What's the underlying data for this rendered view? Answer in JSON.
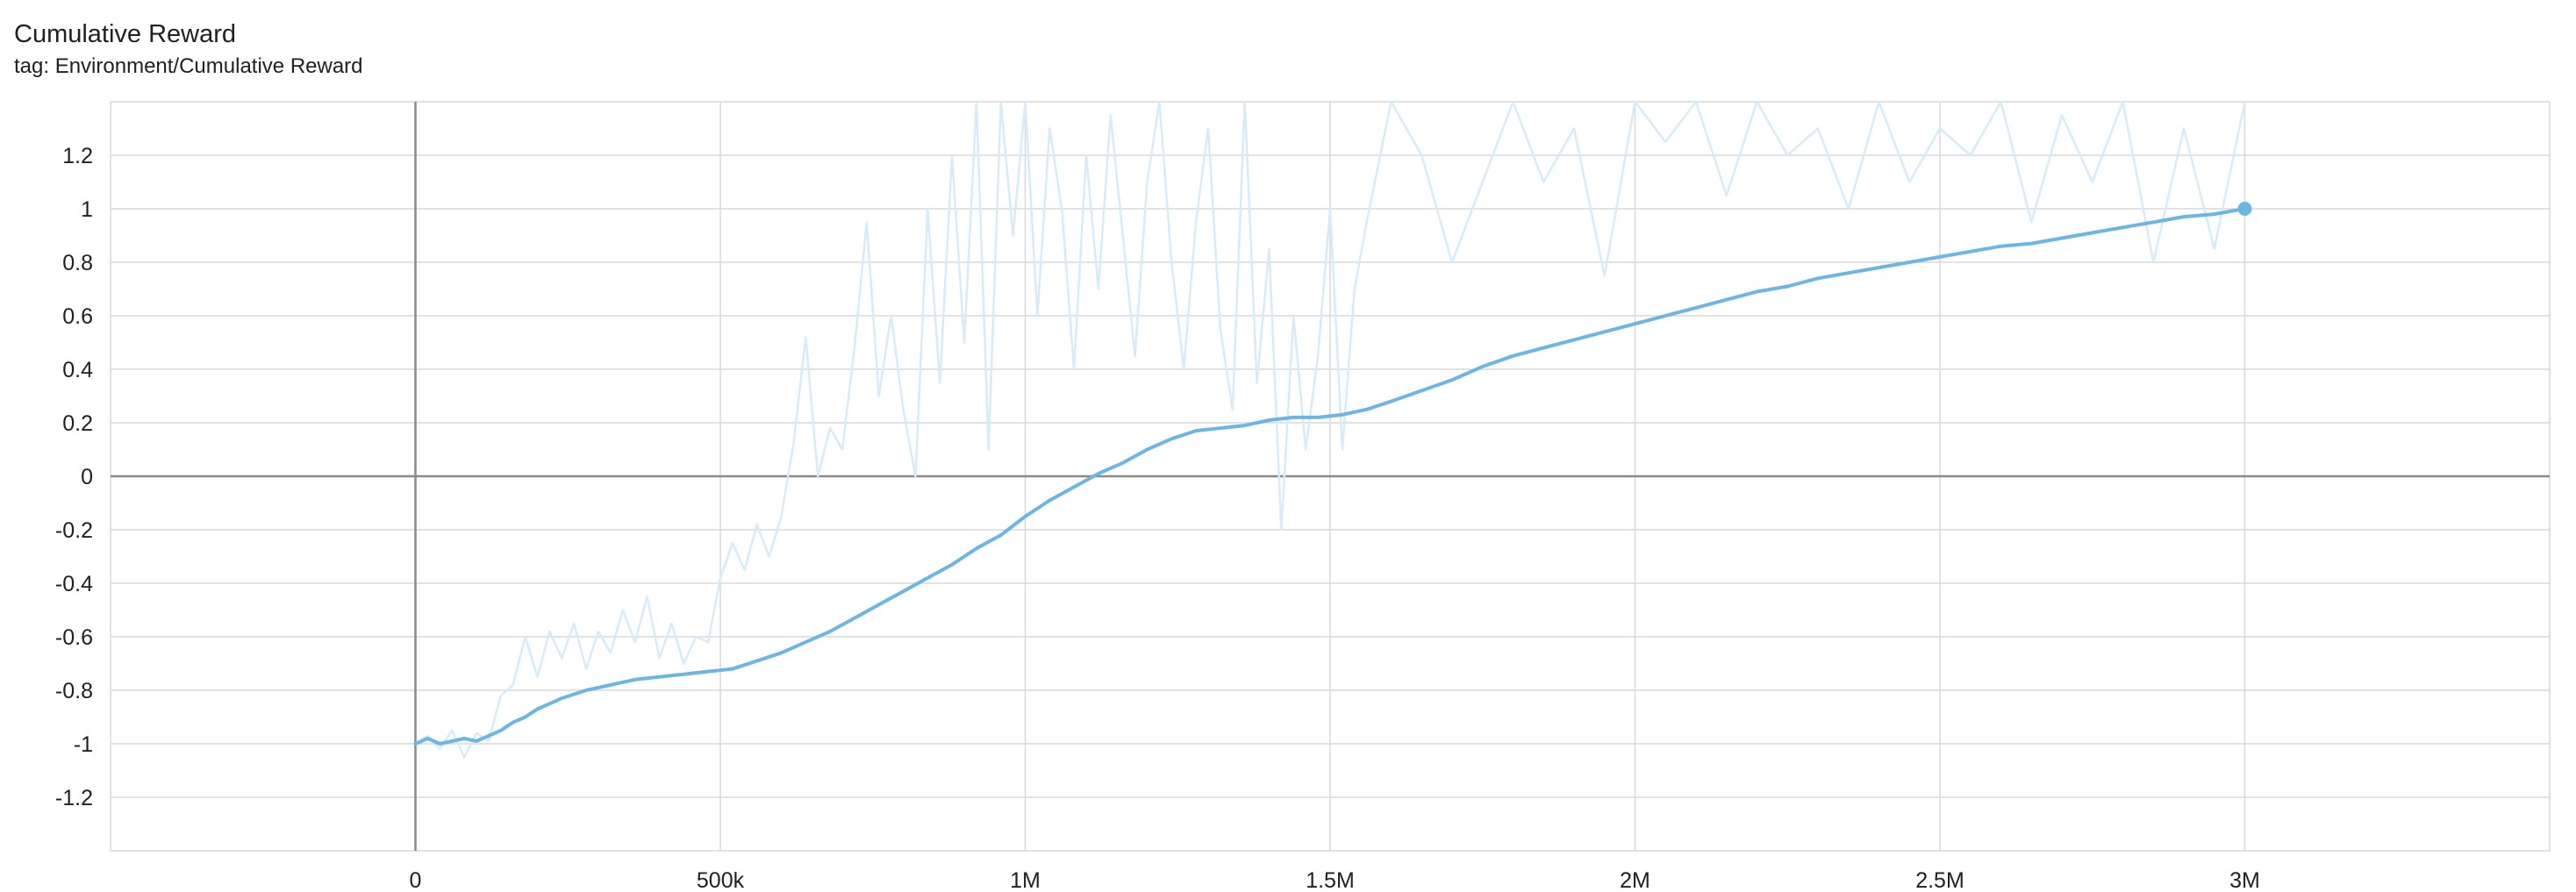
{
  "header": {
    "title": "Cumulative Reward",
    "tag": "tag: Environment/Cumulative Reward"
  },
  "colors": {
    "smoothed": "#6cb6e6",
    "raw": "#d8ebf8",
    "grid": "#d9d9d9",
    "zero_axis": "#8a8a8a"
  },
  "chart_data": {
    "type": "line",
    "title": "Cumulative Reward",
    "subtitle": "tag: Environment/Cumulative Reward",
    "xlim": [
      -500000,
      3500000
    ],
    "ylim": [
      -1.4,
      1.4
    ],
    "grid": true,
    "x_ticks": [
      0,
      500000,
      1000000,
      1500000,
      2000000,
      2500000,
      3000000
    ],
    "x_tick_labels": [
      "0",
      "500k",
      "1M",
      "1.5M",
      "2M",
      "2.5M",
      "3M"
    ],
    "y_ticks": [
      1.2,
      1,
      0.8,
      0.6,
      0.4,
      0.2,
      0,
      -0.2,
      -0.4,
      -0.6,
      -0.8,
      -1,
      -1.2
    ],
    "y_tick_labels": [
      "1.2",
      "1",
      "0.8",
      "0.6",
      "0.4",
      "0.2",
      "0",
      "-0.2",
      "-0.4",
      "-0.6",
      "-0.8",
      "-1",
      "-1.2"
    ],
    "series": [
      {
        "role": "smoothed",
        "x": [
          0,
          20000,
          40000,
          60000,
          80000,
          100000,
          120000,
          140000,
          160000,
          180000,
          200000,
          240000,
          280000,
          320000,
          360000,
          400000,
          440000,
          480000,
          520000,
          560000,
          600000,
          640000,
          680000,
          720000,
          760000,
          800000,
          840000,
          880000,
          920000,
          960000,
          1000000,
          1040000,
          1080000,
          1120000,
          1160000,
          1200000,
          1240000,
          1280000,
          1320000,
          1360000,
          1400000,
          1440000,
          1480000,
          1520000,
          1560000,
          1600000,
          1650000,
          1700000,
          1750000,
          1800000,
          1850000,
          1900000,
          1950000,
          2000000,
          2050000,
          2100000,
          2150000,
          2200000,
          2250000,
          2300000,
          2350000,
          2400000,
          2450000,
          2500000,
          2550000,
          2600000,
          2650000,
          2700000,
          2750000,
          2800000,
          2850000,
          2900000,
          2950000,
          3000000
        ],
        "y": [
          -1.0,
          -0.98,
          -1.0,
          -0.99,
          -0.98,
          -0.99,
          -0.97,
          -0.95,
          -0.92,
          -0.9,
          -0.87,
          -0.83,
          -0.8,
          -0.78,
          -0.76,
          -0.75,
          -0.74,
          -0.73,
          -0.72,
          -0.69,
          -0.66,
          -0.62,
          -0.58,
          -0.53,
          -0.48,
          -0.43,
          -0.38,
          -0.33,
          -0.27,
          -0.22,
          -0.15,
          -0.09,
          -0.04,
          0.01,
          0.05,
          0.1,
          0.14,
          0.17,
          0.18,
          0.19,
          0.21,
          0.22,
          0.22,
          0.23,
          0.25,
          0.28,
          0.32,
          0.36,
          0.41,
          0.45,
          0.48,
          0.51,
          0.54,
          0.57,
          0.6,
          0.63,
          0.66,
          0.69,
          0.71,
          0.74,
          0.76,
          0.78,
          0.8,
          0.82,
          0.84,
          0.86,
          0.87,
          0.89,
          0.91,
          0.93,
          0.95,
          0.97,
          0.98,
          1.0
        ]
      },
      {
        "role": "raw",
        "x": [
          0,
          20000,
          40000,
          60000,
          80000,
          100000,
          120000,
          140000,
          160000,
          180000,
          200000,
          220000,
          240000,
          260000,
          280000,
          300000,
          320000,
          340000,
          360000,
          380000,
          400000,
          420000,
          440000,
          460000,
          480000,
          500000,
          520000,
          540000,
          560000,
          580000,
          600000,
          620000,
          640000,
          660000,
          680000,
          700000,
          720000,
          740000,
          760000,
          780000,
          800000,
          820000,
          840000,
          860000,
          880000,
          900000,
          920000,
          940000,
          960000,
          980000,
          1000000,
          1020000,
          1040000,
          1060000,
          1080000,
          1100000,
          1120000,
          1140000,
          1160000,
          1180000,
          1200000,
          1220000,
          1240000,
          1260000,
          1280000,
          1300000,
          1320000,
          1340000,
          1360000,
          1380000,
          1400000,
          1420000,
          1440000,
          1460000,
          1480000,
          1500000,
          1520000,
          1540000,
          1560000,
          1600000,
          1650000,
          1700000,
          1750000,
          1800000,
          1850000,
          1900000,
          1950000,
          2000000,
          2050000,
          2100000,
          2150000,
          2200000,
          2250000,
          2300000,
          2350000,
          2400000,
          2450000,
          2500000,
          2550000,
          2600000,
          2650000,
          2700000,
          2750000,
          2800000,
          2850000,
          2900000,
          2950000,
          3000000
        ],
        "y": [
          -1.0,
          -0.97,
          -1.02,
          -0.95,
          -1.05,
          -0.96,
          -0.99,
          -0.82,
          -0.78,
          -0.6,
          -0.75,
          -0.58,
          -0.68,
          -0.55,
          -0.72,
          -0.58,
          -0.66,
          -0.5,
          -0.62,
          -0.45,
          -0.68,
          -0.55,
          -0.7,
          -0.6,
          -0.62,
          -0.38,
          -0.25,
          -0.35,
          -0.18,
          -0.3,
          -0.15,
          0.12,
          0.52,
          0.0,
          0.18,
          0.1,
          0.48,
          0.95,
          0.3,
          0.6,
          0.25,
          0.0,
          1.0,
          0.35,
          1.2,
          0.5,
          1.4,
          0.1,
          1.4,
          0.9,
          1.4,
          0.6,
          1.3,
          1.0,
          0.4,
          1.2,
          0.7,
          1.35,
          0.9,
          0.45,
          1.1,
          1.4,
          0.8,
          0.4,
          0.95,
          1.3,
          0.55,
          0.25,
          1.4,
          0.35,
          0.85,
          -0.2,
          0.6,
          0.1,
          0.45,
          1.0,
          0.1,
          0.7,
          0.95,
          1.4,
          1.2,
          0.8,
          1.1,
          1.4,
          1.1,
          1.3,
          0.75,
          1.4,
          1.25,
          1.4,
          1.05,
          1.4,
          1.2,
          1.3,
          1.0,
          1.4,
          1.1,
          1.3,
          1.2,
          1.4,
          0.95,
          1.35,
          1.1,
          1.4,
          0.8,
          1.3,
          0.85,
          1.4
        ]
      }
    ]
  }
}
